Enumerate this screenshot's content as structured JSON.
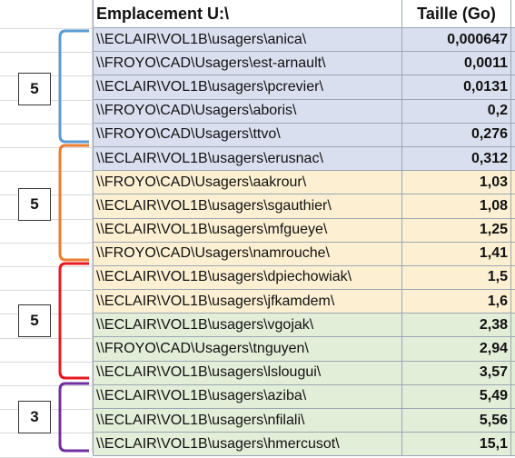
{
  "header": {
    "path_label": "Emplacement U:\\",
    "size_label": "Taille (Go)"
  },
  "rows": [
    {
      "path": "\\\\ECLAIR\\VOL1B\\usagers\\anica\\",
      "size": "0,000647",
      "tint": "blue"
    },
    {
      "path": "\\\\FROYO\\CAD\\Usagers\\est-arnault\\",
      "size": "0,0011",
      "tint": "blue"
    },
    {
      "path": "\\\\ECLAIR\\VOL1B\\usagers\\pcrevier\\",
      "size": "0,0131",
      "tint": "blue"
    },
    {
      "path": "\\\\FROYO\\CAD\\Usagers\\aboris\\",
      "size": "0,2",
      "tint": "blue"
    },
    {
      "path": "\\\\FROYO\\CAD\\Usagers\\ttvo\\",
      "size": "0,276",
      "tint": "blue"
    },
    {
      "path": "\\\\ECLAIR\\VOL1B\\usagers\\erusnac\\",
      "size": "0,312",
      "tint": "blue"
    },
    {
      "path": "\\\\FROYO\\CAD\\Usagers\\aakrour\\",
      "size": "1,03",
      "tint": "orange"
    },
    {
      "path": "\\\\ECLAIR\\VOL1B\\usagers\\sgauthier\\",
      "size": "1,08",
      "tint": "orange"
    },
    {
      "path": "\\\\ECLAIR\\VOL1B\\usagers\\mfgueye\\",
      "size": "1,25",
      "tint": "orange"
    },
    {
      "path": "\\\\FROYO\\CAD\\Usagers\\namrouche\\",
      "size": "1,41",
      "tint": "orange"
    },
    {
      "path": "\\\\ECLAIR\\VOL1B\\usagers\\dpiechowiak\\",
      "size": "1,5",
      "tint": "orange"
    },
    {
      "path": "\\\\ECLAIR\\VOL1B\\usagers\\jfkamdem\\",
      "size": "1,6",
      "tint": "orange"
    },
    {
      "path": "\\\\ECLAIR\\VOL1B\\usagers\\vgojak\\",
      "size": "2,38",
      "tint": "green"
    },
    {
      "path": "\\\\FROYO\\CAD\\Usagers\\tnguyen\\",
      "size": "2,94",
      "tint": "green"
    },
    {
      "path": "\\\\ECLAIR\\VOL1B\\usagers\\lslougui\\",
      "size": "3,57",
      "tint": "green"
    },
    {
      "path": "\\\\ECLAIR\\VOL1B\\usagers\\aziba\\",
      "size": "5,49",
      "tint": "green"
    },
    {
      "path": "\\\\ECLAIR\\VOL1B\\usagers\\nfilali\\",
      "size": "5,56",
      "tint": "green"
    },
    {
      "path": "\\\\ECLAIR\\VOL1B\\usagers\\hmercusot\\",
      "size": "15,1",
      "tint": "green"
    }
  ],
  "groups": [
    {
      "count": "5",
      "color": "#5b9bd5"
    },
    {
      "count": "5",
      "color": "#ed7d31"
    },
    {
      "count": "5",
      "color": "#e8191e"
    },
    {
      "count": "3",
      "color": "#7030a0"
    }
  ],
  "colors": {
    "blue_fill": "#dadff0",
    "orange_fill": "#fdf0d2",
    "green_fill": "#e3eed9",
    "grid": "#d9d9d9"
  }
}
